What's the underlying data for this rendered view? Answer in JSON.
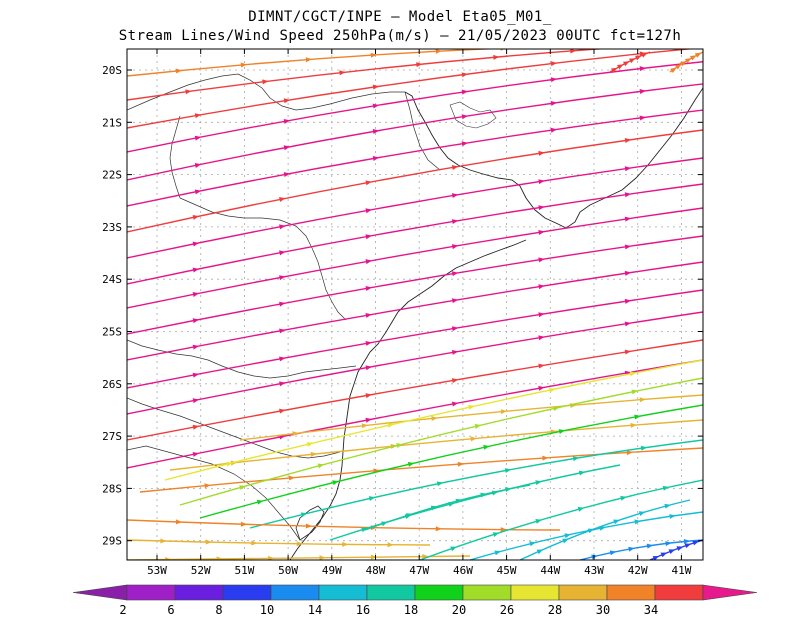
{
  "header": {
    "line1": "DIMNT/CGCT/INPE  –  Model Eta05_M01_",
    "line2": "Stream Lines/Wind Speed 250hPa(m/s)  –  21/05/2023 00UTC fct=127h"
  },
  "map": {
    "lat_labels": [
      "20S",
      "21S",
      "22S",
      "23S",
      "24S",
      "25S",
      "26S",
      "27S",
      "28S",
      "29S"
    ],
    "lon_labels": [
      "53W",
      "52W",
      "51W",
      "50W",
      "49W",
      "48W",
      "47W",
      "46W",
      "45W",
      "44W",
      "43W",
      "42W",
      "41W"
    ]
  },
  "colorbar": {
    "labels": [
      "2",
      "6",
      "8",
      "10",
      "14",
      "16",
      "18",
      "20",
      "26",
      "28",
      "30",
      "34"
    ],
    "colors": [
      "#a020c8",
      "#6a1fe0",
      "#2a3cf0",
      "#1a8cf0",
      "#14bcd4",
      "#12c8a0",
      "#10d21a",
      "#a0dc28",
      "#e6e632",
      "#e6b432",
      "#f08228",
      "#f03c3c"
    ],
    "under_color": "#8a1fa8",
    "over_color": "#e61a8c"
  },
  "streamlines": {
    "speed_colors": {
      "s34": "#e6148c",
      "s30": "#f03c3c",
      "s28": "#f08228",
      "s26": "#e6b432",
      "s20": "#e6e632",
      "s18": "#a0dc28",
      "s16": "#10d21a",
      "s14": "#12c8a0",
      "s10": "#14bcd4",
      "s8": "#1a8cf0",
      "s6": "#2a3cf0"
    }
  }
}
